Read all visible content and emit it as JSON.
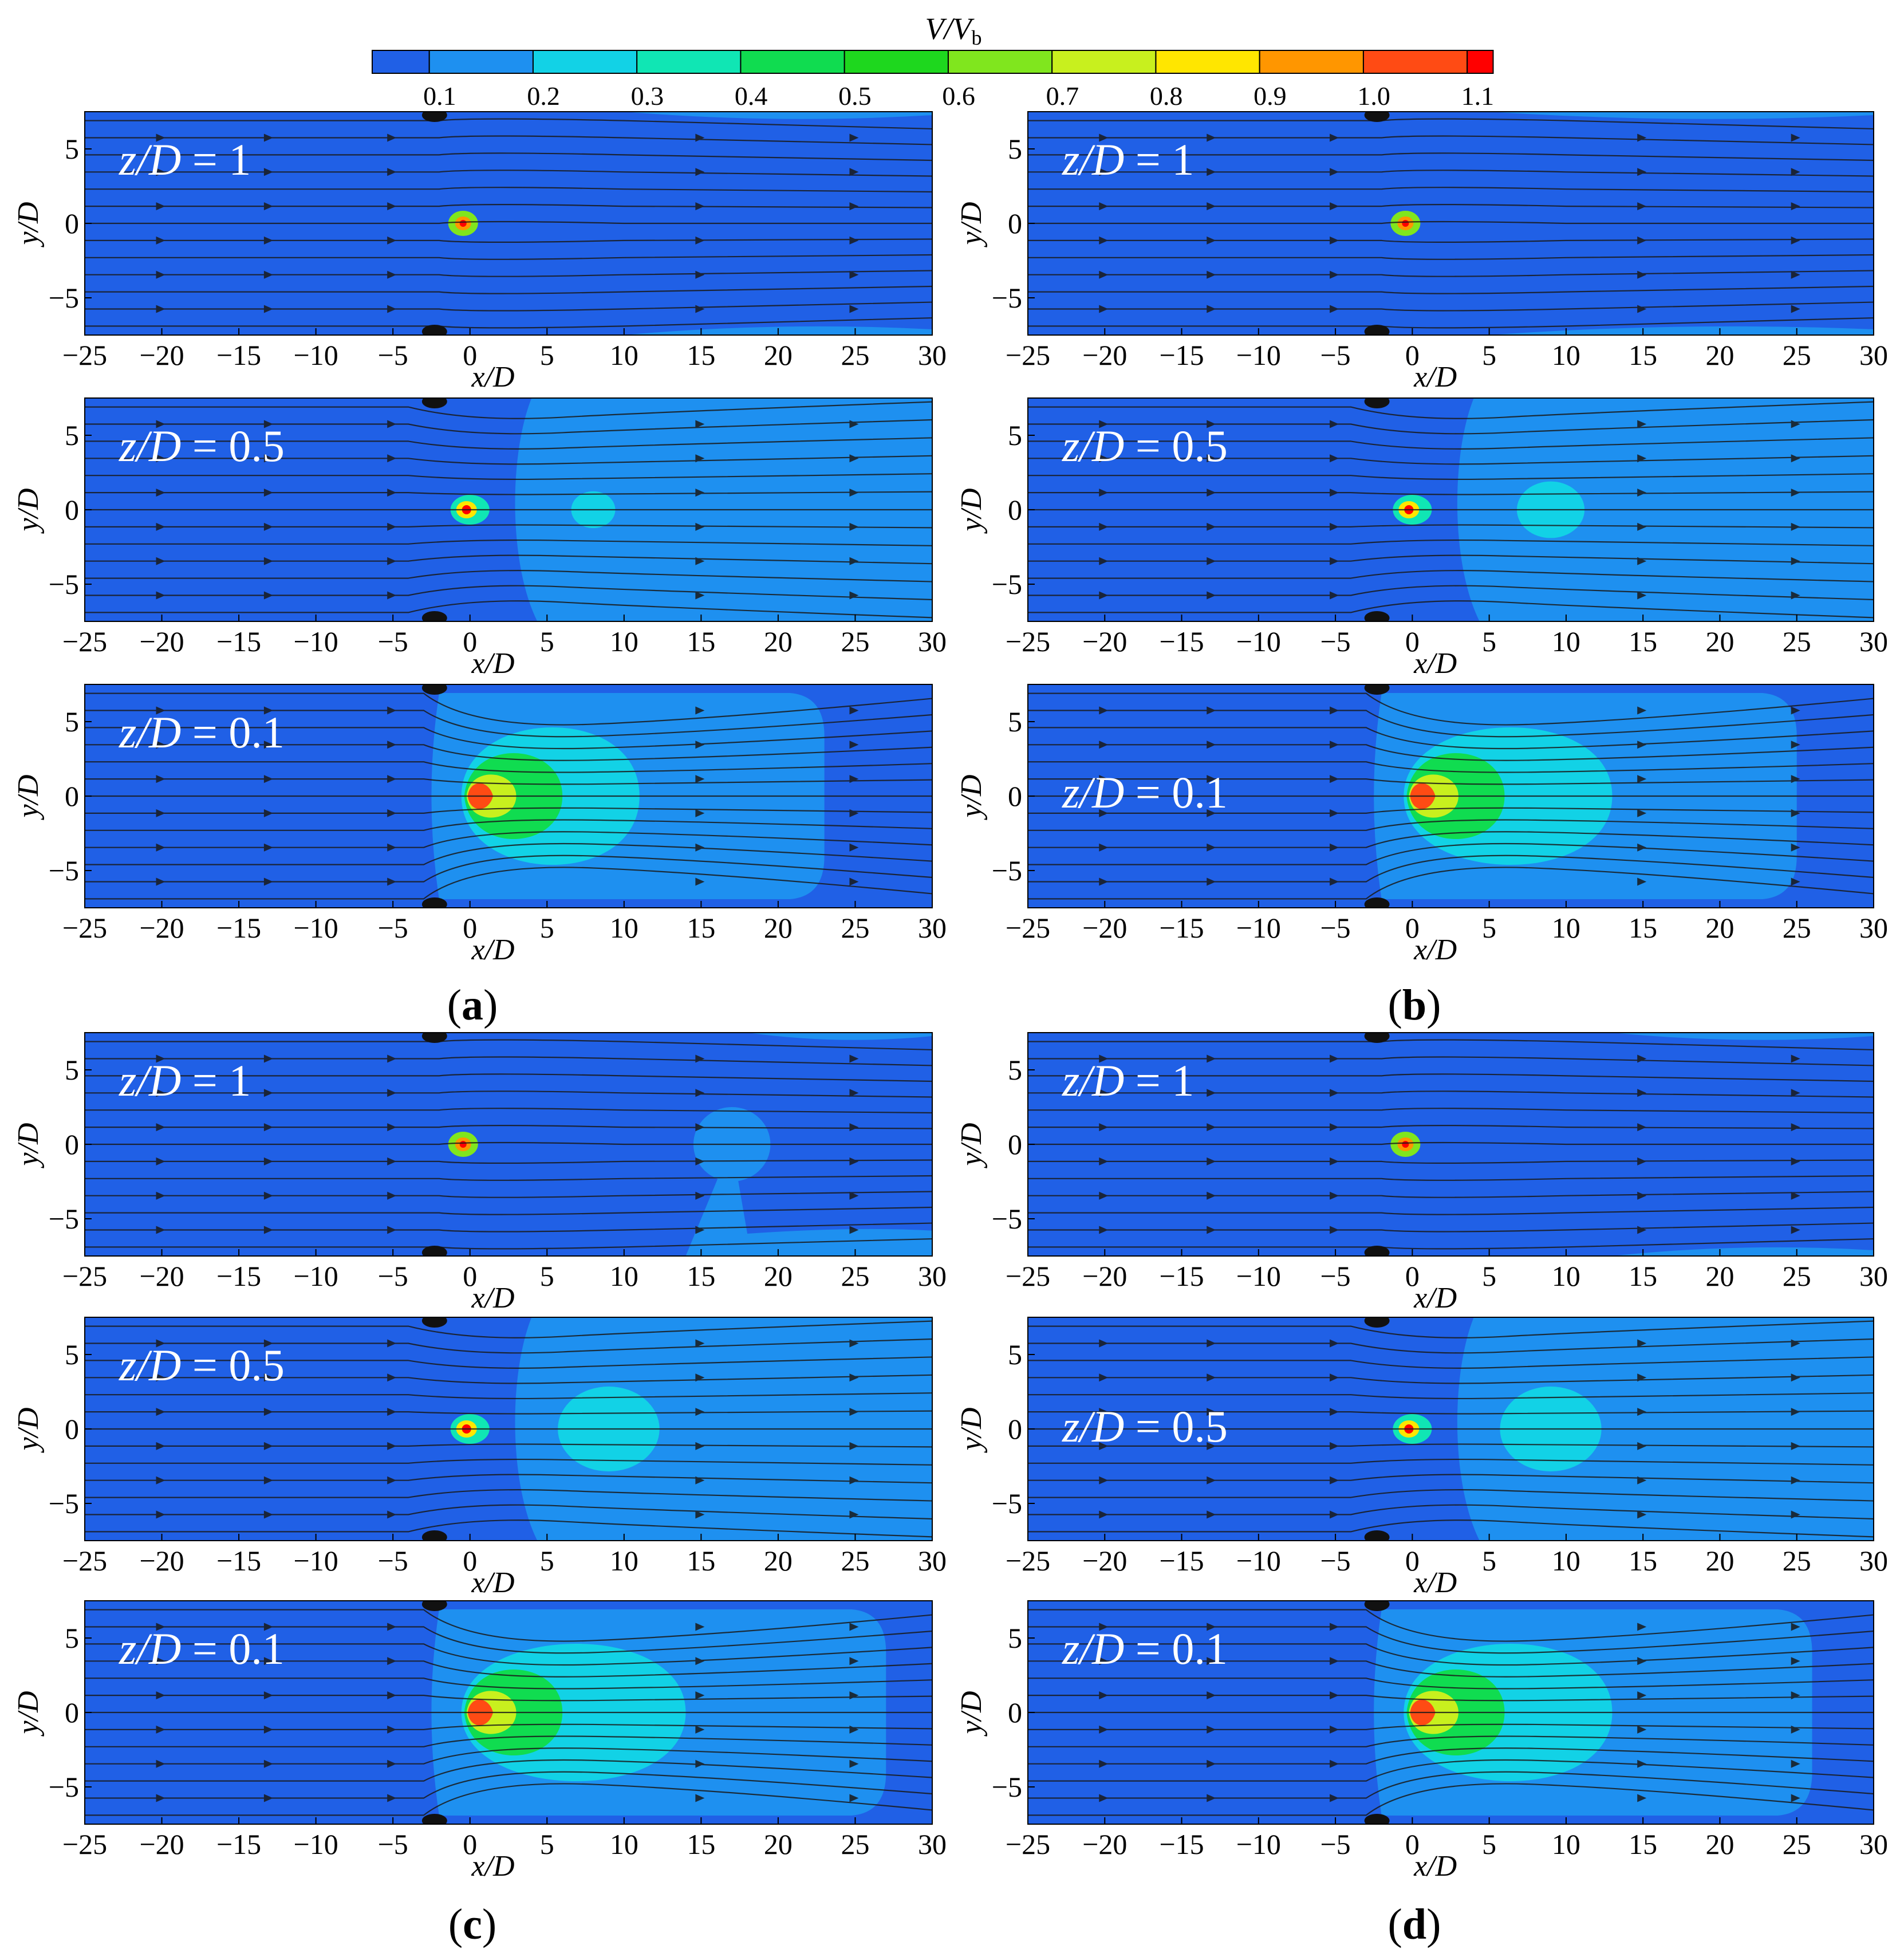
{
  "colorbar": {
    "title_main": "V",
    "title_sep": "/",
    "title_sub_base": "V",
    "title_sub": "b",
    "ticks": [
      "0.1",
      "0.2",
      "0.3",
      "0.4",
      "0.5",
      "0.6",
      "0.7",
      "0.8",
      "0.9",
      "1.0",
      "1.1"
    ],
    "colors": [
      "#2060e6",
      "#1e90f0",
      "#12d2e6",
      "#10e6b4",
      "#10dc50",
      "#1ed71e",
      "#80e61e",
      "#c8f01e",
      "#ffe600",
      "#ff9600",
      "#ff4b14",
      "#ff0000"
    ]
  },
  "axis_text": {
    "xlabel": "x/D",
    "ylabel": "y/D",
    "xticks": [
      "−25",
      "−20",
      "−15",
      "−10",
      "−5",
      "0",
      "5",
      "10",
      "15",
      "20",
      "25",
      "30"
    ],
    "yticks": [
      "5",
      "0",
      "−5"
    ]
  },
  "panel_labels": {
    "a": "a",
    "b": "b",
    "c": "c",
    "d": "d"
  },
  "chart_data": {
    "type": "heatmap",
    "description_field": "V/Vb",
    "x_range": [
      -25,
      30
    ],
    "y_range": [
      -7.5,
      7.5
    ],
    "xticks": [
      -25,
      -20,
      -15,
      -10,
      -5,
      0,
      5,
      10,
      15,
      20,
      25,
      30
    ],
    "yticks": [
      5,
      0,
      -5
    ],
    "panels": [
      {
        "group": "a",
        "rows": [
          {
            "label": "z/D = 1",
            "level": 1.0,
            "plume_x": [
              10,
              30
            ],
            "plume_y": 6.8,
            "wake": false,
            "bubble": null
          },
          {
            "label": "z/D = 0.5",
            "level": 0.5,
            "front_x": 4,
            "bubble": [
              8,
              0,
              1.3
            ],
            "wake": true
          },
          {
            "label": "z/D = 0.1",
            "level": 0.1,
            "outer_x": 23,
            "mid_x": 11,
            "wake": true
          }
        ]
      },
      {
        "group": "b",
        "rows": [
          {
            "label": "z/D = 1",
            "level": 1.0,
            "plume_x": [
              5,
              30
            ],
            "plume_y": 6.8,
            "wake": false,
            "bubble": null
          },
          {
            "label": "z/D = 0.5",
            "level": 0.5,
            "front_x": 4,
            "bubble": [
              9,
              0,
              2
            ],
            "wake": true
          },
          {
            "label": "z/D = 0.1",
            "level": 0.1,
            "outer_x": 25,
            "mid_x": 13,
            "wake": true
          }
        ]
      },
      {
        "group": "c",
        "rows": [
          {
            "label": "z/D = 1",
            "level": 1.0,
            "plume_x": [
              18,
              30
            ],
            "plume_y": 6.5,
            "bubble": [
              17,
              0,
              2.5
            ],
            "wake": false
          },
          {
            "label": "z/D = 0.5",
            "level": 0.5,
            "front_x": 4,
            "bubble": [
              9,
              0,
              3
            ],
            "wake": true
          },
          {
            "label": "z/D = 0.1",
            "level": 0.1,
            "outer_x": 27,
            "mid_x": 14,
            "wake": true
          }
        ]
      },
      {
        "group": "d",
        "rows": [
          {
            "label": "z/D = 1",
            "level": 1.0,
            "plume_x": [
              13,
              30
            ],
            "plume_y": 6.5,
            "wake": false,
            "bubble": null
          },
          {
            "label": "z/D = 0.5",
            "level": 0.5,
            "front_x": 4,
            "bubble": [
              9,
              0,
              3
            ],
            "wake": true
          },
          {
            "label": "z/D = 0.1",
            "level": 0.1,
            "outer_x": 26,
            "mid_x": 13,
            "wake": true
          }
        ]
      }
    ]
  }
}
